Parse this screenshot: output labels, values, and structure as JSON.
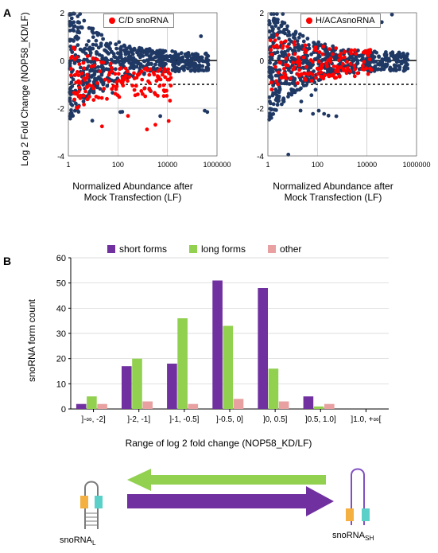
{
  "panel_labels": {
    "A": "A",
    "B": "B"
  },
  "scatter": {
    "ylabel": "Log 2 Fold Change (NOP58_KD/LF)",
    "xlabel": "Normalized Abundance after\nMock Transfection (LF)",
    "ylim": [
      -4,
      2
    ],
    "yticks": [
      -4,
      -2,
      0,
      2
    ],
    "xticks_labels": [
      "1",
      "100",
      "10000",
      "1000000"
    ],
    "xscale": "log",
    "background_color": "#ffffff",
    "grid_color": "#bfbfbf",
    "point_radius": 2.4,
    "colors": {
      "bg_points": "#1f3864",
      "highlight_points": "#ff0000"
    },
    "ref_line_y": 0,
    "ref_line_dashed_y": -1,
    "left": {
      "legend": "C/D snoRNA"
    },
    "right": {
      "legend": "H/ACAsnoRNA"
    }
  },
  "bar": {
    "legend": {
      "short": "short forms",
      "long": "long forms",
      "other": "other"
    },
    "colors": {
      "short": "#7030a0",
      "long": "#92d050",
      "other": "#e8a0a0"
    },
    "ylabel": "snoRNA form count",
    "xlabel": "Range of log 2 fold change (NOP58_KD/LF)",
    "ylim": [
      0,
      60
    ],
    "ytick_step": 10,
    "categories": [
      "]-∞, -2]",
      "]-2, -1]",
      "]-1, -0.5]",
      "]-0.5, 0]",
      "]0, 0.5]",
      "]0.5, 1.0]",
      "]1.0, +∞["
    ],
    "series": {
      "short": [
        2,
        17,
        18,
        51,
        48,
        5,
        0
      ],
      "long": [
        5,
        20,
        36,
        33,
        16,
        1,
        0
      ],
      "other": [
        2,
        3,
        2,
        4,
        3,
        2,
        0
      ]
    },
    "bar_width": 0.22
  },
  "diagram": {
    "left_label": "snoRNA_L",
    "right_label": "snoRNA_SH",
    "arrow_colors": {
      "top": "#92d050",
      "bottom": "#7030a0"
    },
    "accent_colors": {
      "orange": "#f4b040",
      "teal": "#5ad0c8",
      "yellow": "#f4d040"
    }
  }
}
